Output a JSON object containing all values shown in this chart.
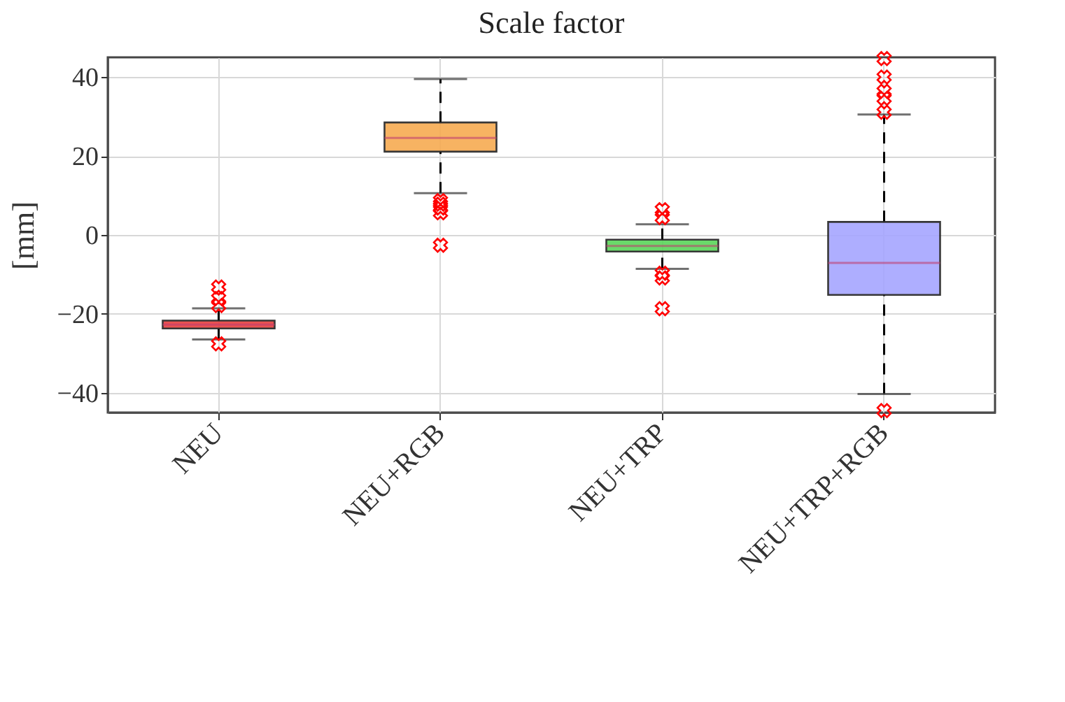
{
  "chart_data": {
    "type": "box",
    "title": "Scale factor",
    "ylabel": "[mm]",
    "categories": [
      "NEU",
      "NEU+RGB",
      "NEU+TRP",
      "NEU+TRP+RGB"
    ],
    "colors": [
      "#e8403f",
      "#f7ab52",
      "#5ad55a",
      "#a6a6ff"
    ],
    "boxes": [
      {
        "low": -26.5,
        "q1": -23.7,
        "median": -22.7,
        "q3": -21.7,
        "high": -18.6,
        "outliers": [
          -13.2,
          -16.1,
          -17.9,
          -27.6
        ]
      },
      {
        "low": 10.6,
        "q1": 21.1,
        "median": 24.6,
        "q3": 28.5,
        "high": 39.5,
        "outliers": [
          8.7,
          7.8,
          6.8,
          5.6,
          -2.6
        ]
      },
      {
        "low": -8.6,
        "q1": -4.2,
        "median": -2.8,
        "q3": -1.2,
        "high": 2.7,
        "outliers": [
          6.4,
          4.4,
          -9.7,
          -10.9,
          -18.7
        ]
      },
      {
        "low": -40.3,
        "q1": -15.2,
        "median": -7.1,
        "q3": 3.3,
        "high": 30.5,
        "outliers": [
          44.7,
          40,
          36.4,
          34.6,
          31.1,
          -44.5
        ]
      }
    ],
    "ylim": [
      -45,
      45
    ],
    "yticks": [
      -40,
      -20,
      0,
      20,
      40
    ],
    "grid": true,
    "marker": "cross",
    "line_style": "dashed"
  }
}
